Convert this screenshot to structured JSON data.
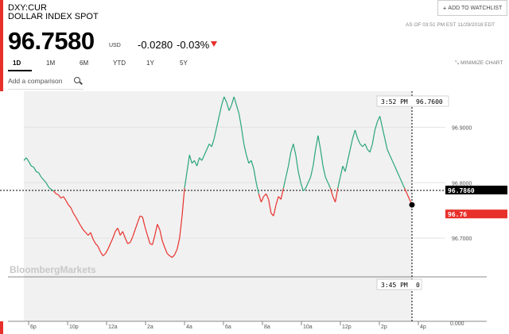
{
  "quote": {
    "ticker": "DXY:CUR",
    "name": "DOLLAR INDEX SPOT",
    "price": "96.7580",
    "currency": "USD",
    "change": "-0.0280",
    "change_pct": "-0.03%",
    "as_of": "AS OF 03:51 PM EST 11/29/2018 EDT"
  },
  "watchlist": {
    "plus": "+",
    "label": "ADD TO WATCHLIST"
  },
  "ranges": [
    "1D",
    "1M",
    "6M",
    "YTD",
    "1Y",
    "5Y"
  ],
  "active_range": "1D",
  "minimize_label": "MINIMIZE CHART",
  "comparison_placeholder": "Add a comparison",
  "watermark": "BloombergMarkets",
  "colors": {
    "accent_red": "#e8302b",
    "up_green": "#2aa57a",
    "down_red": "#e8302b"
  },
  "cursor": {
    "time_top": "3:52 PM",
    "value_top": "96.7600",
    "time_bottom": "3:45 PM",
    "volume": "0"
  },
  "badges": {
    "prev_close": "96.7860",
    "last": "96.76"
  },
  "chart_data": {
    "type": "line",
    "x_tick_labels": [
      "6p",
      "10p",
      "12a",
      "2a",
      "4a",
      "6a",
      "8a",
      "10a",
      "12p",
      "2p",
      "4p"
    ],
    "y_tick_labels": [
      "96.9000",
      "96.8000",
      "96.7000"
    ],
    "volume_tick_label": "0.000",
    "yaxis_values": [
      96.9,
      96.8,
      96.7
    ],
    "ylim": [
      96.63,
      96.965
    ],
    "previous_close": 96.786,
    "series": [
      {
        "values": [
          96.84,
          96.845,
          96.838,
          96.83,
          96.828,
          96.82,
          96.818,
          96.81,
          96.805,
          96.8,
          96.792,
          96.788,
          96.785,
          96.78,
          96.778,
          96.772,
          96.775,
          96.768,
          96.76,
          96.755,
          96.745,
          96.738,
          96.73,
          96.722,
          96.715,
          96.71,
          96.705,
          96.71,
          96.698,
          96.69,
          96.685,
          96.675,
          96.668,
          96.672,
          96.68,
          96.69,
          96.7,
          96.712,
          96.718,
          96.705,
          96.712,
          96.7,
          96.69,
          96.692,
          96.702,
          96.715,
          96.728,
          96.74,
          96.738,
          96.72,
          96.705,
          96.69,
          96.688,
          96.705,
          96.725,
          96.715,
          96.695,
          96.683,
          96.672,
          96.668,
          96.665,
          96.67,
          96.68,
          96.7,
          96.74,
          96.79,
          96.82,
          96.85,
          96.835,
          96.84,
          96.83,
          96.845,
          96.84,
          96.85,
          96.86,
          96.87,
          96.865,
          96.88,
          96.9,
          96.92,
          96.94,
          96.955,
          96.945,
          96.93,
          96.94,
          96.955,
          96.94,
          96.925,
          96.9,
          96.87,
          96.85,
          96.835,
          96.84,
          96.825,
          96.8,
          96.78,
          96.765,
          96.775,
          96.78,
          96.77,
          96.745,
          96.74,
          96.76,
          96.775,
          96.77,
          96.79,
          96.81,
          96.83,
          96.855,
          96.87,
          96.85,
          96.82,
          96.8,
          96.785,
          96.79,
          96.8,
          96.81,
          96.83,
          96.86,
          96.885,
          96.86,
          96.83,
          96.81,
          96.8,
          96.79,
          96.775,
          96.765,
          96.79,
          96.81,
          96.83,
          96.82,
          96.84,
          96.86,
          96.88,
          96.895,
          96.88,
          96.87,
          96.865,
          96.87,
          96.86,
          96.855,
          96.87,
          96.895,
          96.91,
          96.92,
          96.9,
          96.88,
          96.86,
          96.85,
          96.84,
          96.83,
          96.82,
          96.81,
          96.8,
          96.79,
          96.78,
          96.77,
          96.76
        ]
      }
    ]
  }
}
